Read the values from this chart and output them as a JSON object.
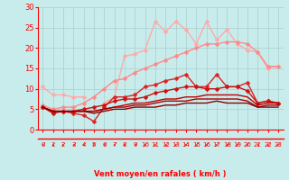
{
  "x": [
    0,
    1,
    2,
    3,
    4,
    5,
    6,
    7,
    8,
    9,
    10,
    11,
    12,
    13,
    14,
    15,
    16,
    17,
    18,
    19,
    20,
    21,
    22,
    23
  ],
  "series": [
    {
      "y": [
        10.5,
        8.5,
        8.5,
        8.0,
        8.0,
        null,
        6.5,
        8.0,
        18.0,
        18.5,
        19.5,
        26.5,
        24.0,
        26.5,
        24.5,
        21.0,
        26.5,
        22.0,
        24.5,
        21.0,
        19.5,
        19.0,
        15.0,
        15.5
      ],
      "color": "#ffaaaa",
      "lw": 1.0,
      "marker": "D",
      "ms": 2.5
    },
    {
      "y": [
        6.0,
        5.0,
        5.5,
        5.5,
        6.5,
        8.0,
        10.0,
        12.0,
        12.5,
        14.0,
        15.0,
        16.0,
        17.0,
        18.0,
        19.0,
        20.0,
        21.0,
        21.0,
        21.5,
        21.5,
        21.0,
        19.0,
        15.5,
        15.5
      ],
      "color": "#ff8888",
      "lw": 1.0,
      "marker": "D",
      "ms": 2.5
    },
    {
      "y": [
        5.5,
        4.5,
        4.5,
        4.0,
        3.5,
        2.0,
        5.5,
        8.0,
        8.0,
        8.5,
        10.5,
        11.0,
        12.0,
        12.5,
        13.5,
        10.5,
        10.5,
        13.5,
        10.5,
        10.5,
        11.5,
        6.5,
        7.0,
        6.5
      ],
      "color": "#dd2222",
      "lw": 1.0,
      "marker": "D",
      "ms": 2.5
    },
    {
      "y": [
        5.5,
        4.0,
        4.5,
        4.5,
        5.0,
        5.5,
        6.0,
        7.0,
        7.5,
        7.5,
        8.0,
        9.0,
        9.5,
        10.0,
        10.5,
        10.5,
        10.0,
        10.0,
        10.5,
        10.5,
        9.5,
        6.5,
        7.0,
        6.5
      ],
      "color": "#cc1111",
      "lw": 1.0,
      "marker": "D",
      "ms": 2.5
    },
    {
      "y": [
        5.5,
        4.5,
        4.5,
        4.5,
        4.5,
        4.5,
        5.0,
        5.5,
        6.0,
        6.5,
        6.5,
        7.0,
        7.5,
        7.5,
        8.0,
        8.0,
        8.5,
        8.5,
        8.5,
        8.5,
        8.0,
        6.0,
        6.5,
        6.5
      ],
      "color": "#bb0000",
      "lw": 1.0,
      "marker": null,
      "ms": 0
    },
    {
      "y": [
        5.5,
        4.5,
        4.5,
        4.5,
        4.5,
        4.5,
        5.0,
        5.5,
        5.5,
        6.0,
        6.0,
        6.5,
        7.0,
        7.0,
        7.0,
        7.5,
        7.5,
        7.5,
        7.5,
        7.5,
        7.0,
        5.5,
        6.0,
        6.0
      ],
      "color": "#aa0000",
      "lw": 1.0,
      "marker": null,
      "ms": 0
    },
    {
      "y": [
        5.5,
        4.5,
        4.5,
        4.5,
        4.5,
        4.0,
        4.5,
        5.0,
        5.0,
        5.5,
        5.5,
        5.5,
        6.0,
        6.0,
        6.5,
        6.5,
        6.5,
        7.0,
        6.5,
        6.5,
        6.5,
        5.5,
        5.5,
        5.5
      ],
      "color": "#880000",
      "lw": 1.0,
      "marker": null,
      "ms": 0
    }
  ],
  "xlabel": "Vent moyen/en rafales ( km/h )",
  "ylim": [
    0,
    30
  ],
  "xlim": [
    0,
    23
  ],
  "yticks": [
    0,
    5,
    10,
    15,
    20,
    25,
    30
  ],
  "xticks": [
    0,
    1,
    2,
    3,
    4,
    5,
    6,
    7,
    8,
    9,
    10,
    11,
    12,
    13,
    14,
    15,
    16,
    17,
    18,
    19,
    20,
    21,
    22,
    23
  ],
  "bg_color": "#c8ecec",
  "grid_color": "#aacccc",
  "axis_color": "#ff0000",
  "tick_color": "#ff0000"
}
